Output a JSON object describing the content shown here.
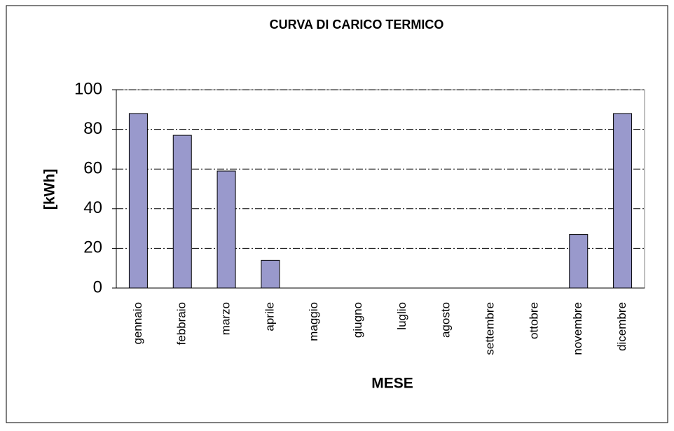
{
  "chart_data": {
    "type": "bar",
    "title": "CURVA DI CARICO TERMICO",
    "x_label": "MESE",
    "y_label": "[kWh]",
    "categories": [
      "gennaio",
      "febbraio",
      "marzo",
      "aprile",
      "maggio",
      "giugno",
      "luglio",
      "agosto",
      "settembre",
      "ottobre",
      "novembre",
      "dicembre"
    ],
    "values": [
      88,
      77,
      59,
      14,
      0,
      0,
      0,
      0,
      0,
      0,
      27,
      88
    ],
    "color": "#9999cc",
    "ylim": [
      0,
      100
    ],
    "yticks": [
      0,
      20,
      40,
      60,
      80,
      100
    ],
    "grid": true
  }
}
